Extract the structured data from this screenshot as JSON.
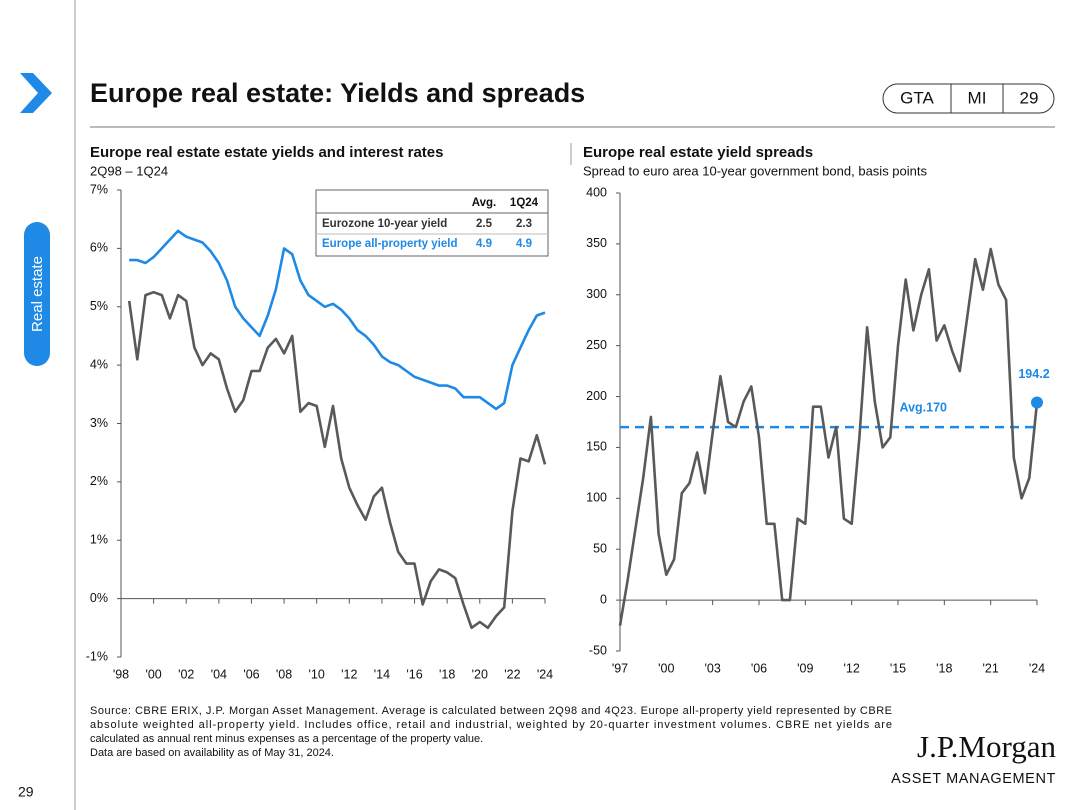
{
  "header": {
    "title": "Europe real estate: Yields and spreads",
    "tags": [
      "GTA",
      "MI",
      "29"
    ]
  },
  "sidebar": {
    "section": "Real estate",
    "page_number": "29"
  },
  "chart_data": [
    {
      "type": "line",
      "title": "Europe real estate estate yields and interest rates",
      "subtitle": "2Q98 – 1Q24",
      "x": [
        1998.5,
        1999,
        1999.5,
        2000,
        2000.5,
        2001,
        2001.5,
        2002,
        2002.5,
        2003,
        2003.5,
        2004,
        2004.5,
        2005,
        2005.5,
        2006,
        2006.5,
        2007,
        2007.5,
        2008,
        2008.5,
        2009,
        2009.5,
        2010,
        2010.5,
        2011,
        2011.5,
        2012,
        2012.5,
        2013,
        2013.5,
        2014,
        2014.5,
        2015,
        2015.5,
        2016,
        2016.5,
        2017,
        2017.5,
        2018,
        2018.5,
        2019,
        2019.5,
        2020,
        2020.5,
        2021,
        2021.5,
        2022,
        2022.5,
        2023,
        2023.5,
        2024
      ],
      "series": [
        {
          "name": "Eurozone 10-year yield",
          "color": "#58595b",
          "table_values": [
            2.5,
            2.3
          ],
          "values": [
            5.1,
            4.1,
            5.2,
            5.25,
            5.2,
            4.8,
            5.2,
            5.1,
            4.3,
            4.0,
            4.2,
            4.1,
            3.6,
            3.2,
            3.4,
            3.9,
            3.9,
            4.3,
            4.45,
            4.2,
            4.5,
            3.2,
            3.35,
            3.3,
            2.6,
            3.3,
            2.4,
            1.9,
            1.6,
            1.35,
            1.75,
            1.9,
            1.3,
            0.8,
            0.6,
            0.6,
            -0.1,
            0.3,
            0.5,
            0.45,
            0.35,
            -0.1,
            -0.5,
            -0.4,
            -0.5,
            -0.3,
            -0.15,
            1.5,
            2.4,
            2.35,
            2.8,
            2.3
          ]
        },
        {
          "name": "Europe all-property yield",
          "color": "#1e8ae6",
          "table_values": [
            4.9,
            4.9
          ],
          "values": [
            5.8,
            5.8,
            5.75,
            5.85,
            6.0,
            6.15,
            6.3,
            6.2,
            6.15,
            6.1,
            5.95,
            5.75,
            5.45,
            5.0,
            4.8,
            4.65,
            4.5,
            4.85,
            5.3,
            6.0,
            5.9,
            5.45,
            5.2,
            5.1,
            5.0,
            5.05,
            4.95,
            4.8,
            4.6,
            4.5,
            4.35,
            4.15,
            4.05,
            4.0,
            3.9,
            3.8,
            3.75,
            3.7,
            3.65,
            3.65,
            3.6,
            3.45,
            3.45,
            3.45,
            3.35,
            3.25,
            3.35,
            4.0,
            4.3,
            4.6,
            4.85,
            4.9
          ]
        }
      ],
      "table_columns": [
        "Avg.",
        "1Q24"
      ],
      "xlim": [
        1998,
        2024
      ],
      "xticks": [
        {
          "value": 1998,
          "label": "'98"
        },
        {
          "value": 2000,
          "label": "'00"
        },
        {
          "value": 2002,
          "label": "'02"
        },
        {
          "value": 2004,
          "label": "'04"
        },
        {
          "value": 2006,
          "label": "'06"
        },
        {
          "value": 2008,
          "label": "'08"
        },
        {
          "value": 2010,
          "label": "'10"
        },
        {
          "value": 2012,
          "label": "'12"
        },
        {
          "value": 2014,
          "label": "'14"
        },
        {
          "value": 2016,
          "label": "'16"
        },
        {
          "value": 2018,
          "label": "'18"
        },
        {
          "value": 2020,
          "label": "'20"
        },
        {
          "value": 2022,
          "label": "'22"
        },
        {
          "value": 2024,
          "label": "'24"
        }
      ],
      "ylim": [
        -1,
        7
      ],
      "yticks": [
        {
          "value": -1,
          "label": "-1%"
        },
        {
          "value": 0,
          "label": "0%"
        },
        {
          "value": 1,
          "label": "1%"
        },
        {
          "value": 2,
          "label": "2%"
        },
        {
          "value": 3,
          "label": "3%"
        },
        {
          "value": 4,
          "label": "4%"
        },
        {
          "value": 5,
          "label": "5%"
        },
        {
          "value": 6,
          "label": "6%"
        },
        {
          "value": 7,
          "label": "7%"
        }
      ],
      "grid": false
    },
    {
      "type": "line",
      "title": "Europe real estate yield spreads",
      "subtitle": "Spread to euro area 10-year government bond, basis points",
      "x": [
        1997,
        1997.5,
        1998,
        1998.5,
        1999,
        1999.5,
        2000,
        2000.5,
        2001,
        2001.5,
        2002,
        2002.5,
        2003,
        2003.5,
        2004,
        2004.5,
        2005,
        2005.5,
        2006,
        2006.5,
        2007,
        2007.5,
        2008,
        2008.5,
        2009,
        2009.5,
        2010,
        2010.5,
        2011,
        2011.5,
        2012,
        2012.5,
        2013,
        2013.5,
        2014,
        2014.5,
        2015,
        2015.5,
        2016,
        2016.5,
        2017,
        2017.5,
        2018,
        2018.5,
        2019,
        2019.5,
        2020,
        2020.5,
        2021,
        2021.5,
        2022,
        2022.5,
        2023,
        2023.5,
        2024
      ],
      "series": [
        {
          "color": "#58595b",
          "values": [
            -25,
            20,
            70,
            120,
            180,
            65,
            25,
            40,
            105,
            115,
            145,
            105,
            165,
            220,
            175,
            170,
            195,
            210,
            160,
            75,
            75,
            0,
            0,
            80,
            75,
            190,
            190,
            140,
            170,
            80,
            75,
            160,
            268,
            195,
            150,
            160,
            250,
            315,
            265,
            300,
            325,
            255,
            270,
            245,
            225,
            280,
            335,
            305,
            345,
            310,
            295,
            140,
            100,
            120,
            194.2
          ],
          "value_labels": [
            null,
            null,
            null,
            null,
            null,
            null,
            null,
            null,
            null,
            null,
            null,
            null,
            null,
            null,
            null,
            null,
            null,
            null,
            null,
            null,
            null,
            null,
            null,
            null,
            null,
            null,
            null,
            null,
            null,
            null,
            null,
            null,
            null,
            null,
            null,
            null,
            null,
            null,
            null,
            null,
            null,
            null,
            null,
            null,
            null,
            null,
            null,
            null,
            null,
            null,
            null,
            null,
            null,
            null,
            "194.2"
          ]
        }
      ],
      "average": 170,
      "average_label": "Avg.170",
      "highlight_color": "#1e8ae6",
      "xlim": [
        1997,
        2024
      ],
      "xticks": [
        {
          "value": 1997,
          "label": "'97"
        },
        {
          "value": 2000,
          "label": "'00"
        },
        {
          "value": 2003,
          "label": "'03"
        },
        {
          "value": 2006,
          "label": "'06"
        },
        {
          "value": 2009,
          "label": "'09"
        },
        {
          "value": 2012,
          "label": "'12"
        },
        {
          "value": 2015,
          "label": "'15"
        },
        {
          "value": 2018,
          "label": "'18"
        },
        {
          "value": 2021,
          "label": "'21"
        },
        {
          "value": 2024,
          "label": "'24"
        }
      ],
      "ylim": [
        -50,
        400
      ],
      "yticks": [
        -50,
        0,
        50,
        100,
        150,
        200,
        250,
        300,
        350,
        400
      ],
      "grid": false
    }
  ],
  "footer": {
    "source": [
      "Source: CBRE ERIX, J.P. Morgan Asset Management. Average is calculated between 2Q98 and 4Q23. Europe all-property yield represented by CBRE",
      "absolute weighted all-property yield. Includes office, retail and industrial, weighted by 20-quarter investment volumes. CBRE net yields are",
      "calculated as annual rent minus expenses as a percentage of the property value.",
      "Data are based on availability as of May 31, 2024."
    ],
    "logo": [
      "J.P.Morgan",
      "ASSET MANAGEMENT"
    ]
  }
}
